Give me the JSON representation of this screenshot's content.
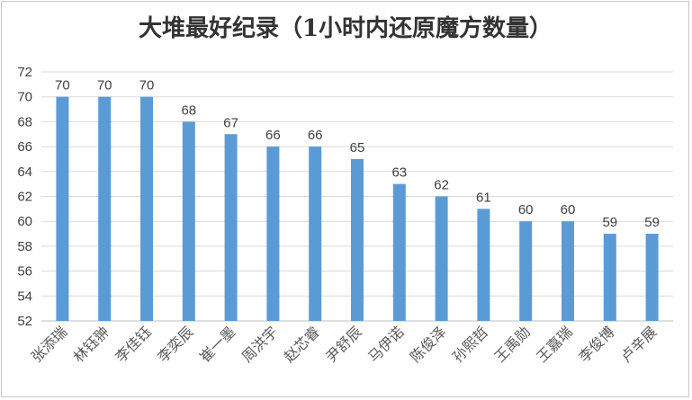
{
  "chart_data": {
    "type": "bar",
    "title": "大堆最好纪录（1小时内还原魔方数量）",
    "categories": [
      "张添瑞",
      "林钰翀",
      "李佳钰",
      "李奕辰",
      "崔一墨",
      "周洪宇",
      "赵芯睿",
      "尹舒辰",
      "马伊诺",
      "陈俊泽",
      "孙熙哲",
      "王禹勋",
      "王嘉瑞",
      "李俊博",
      "卢辛展"
    ],
    "values": [
      70,
      70,
      70,
      68,
      67,
      66,
      66,
      65,
      63,
      62,
      61,
      60,
      60,
      59,
      59
    ],
    "ylim": [
      52,
      72
    ],
    "yticks": [
      52,
      54,
      56,
      58,
      60,
      62,
      64,
      66,
      68,
      70,
      72
    ],
    "grid": true,
    "legend": "none",
    "colors": {
      "bar": "#5b9bd5",
      "grid": "#d9d9d9",
      "axis": "#bfbfbf"
    }
  }
}
